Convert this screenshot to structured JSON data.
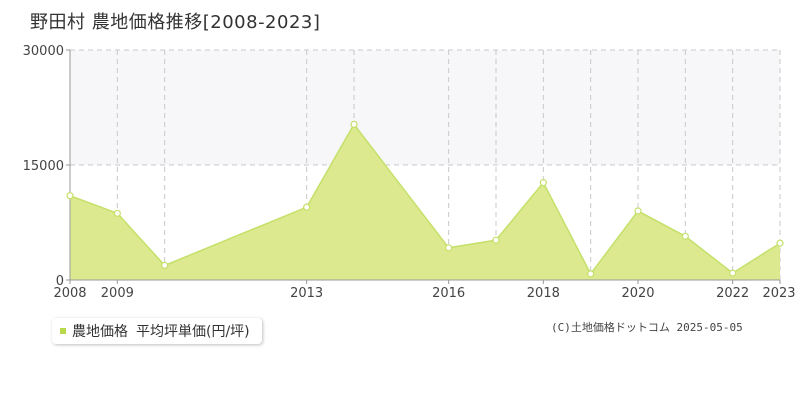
{
  "header": {
    "place": "野田村",
    "title": "農地価格推移[2008-2023]"
  },
  "legend": {
    "marker": "■",
    "series_label": "農地価格",
    "unit_label": "平均坪単価(円/坪)"
  },
  "credit": "(C)土地価格ドットコム 2025-05-05",
  "colors": {
    "fill": "#dde98f",
    "line": "#c4e06a",
    "band": "#f7f6f8",
    "grid": "#c8c8c8",
    "axis": "#999999"
  },
  "chart_data": {
    "type": "area",
    "x": [
      2008,
      2009,
      2010,
      2013,
      2014,
      2016,
      2017,
      2018,
      2019,
      2020,
      2021,
      2022,
      2023
    ],
    "series": [
      {
        "name": "農地価格",
        "values": [
          11000,
          8700,
          1900,
          9500,
          20300,
          4200,
          5200,
          12700,
          800,
          9000,
          5700,
          900,
          4800
        ]
      }
    ],
    "xlim": [
      2008,
      2023
    ],
    "ylim": [
      0,
      30000
    ],
    "yticks": [
      0,
      15000,
      30000
    ],
    "ytick_labels": [
      "0",
      "15000",
      "30000"
    ],
    "xtick_labels": [
      "2008",
      "2009",
      "2013",
      "2016",
      "2018",
      "2020",
      "2022",
      "2023"
    ],
    "grid": true
  }
}
